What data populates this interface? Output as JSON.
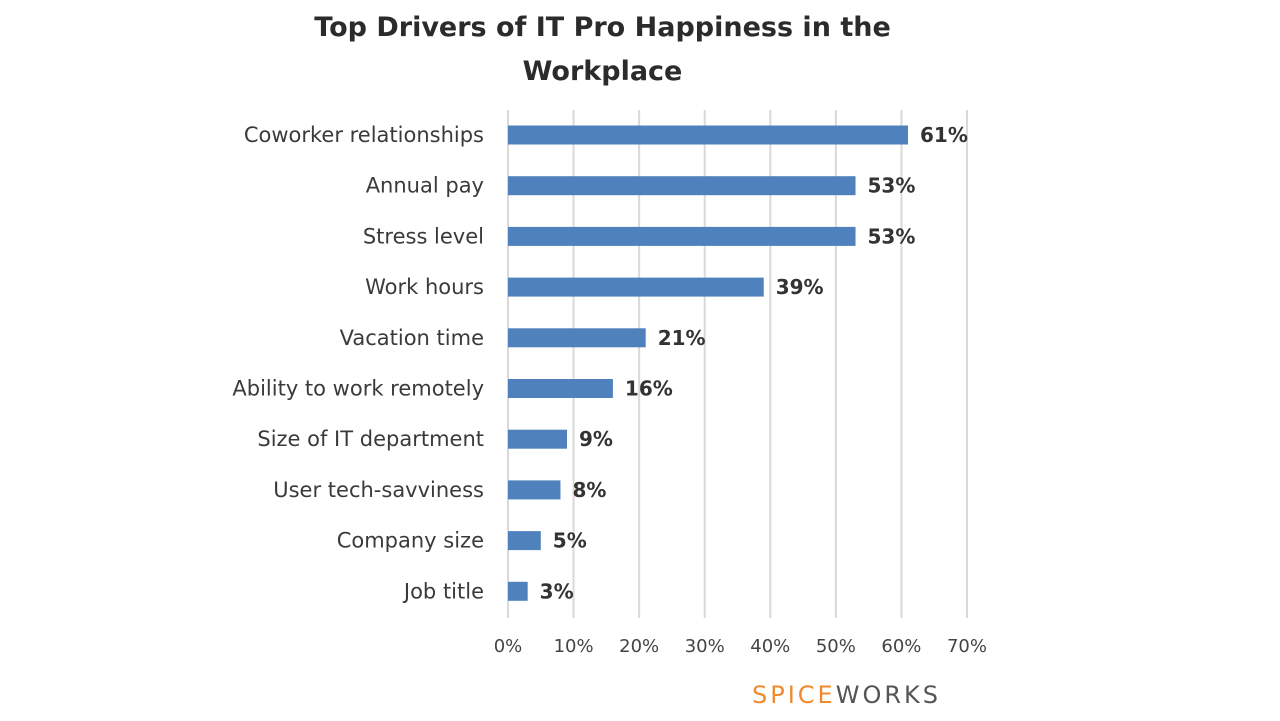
{
  "chart_data": {
    "type": "bar",
    "orientation": "horizontal",
    "title_lines": [
      "Top Drivers of IT Pro Happiness in the",
      "Workplace"
    ],
    "categories": [
      "Coworker relationships",
      "Annual pay",
      "Stress level",
      "Work hours",
      "Vacation time",
      "Ability to work remotely",
      "Size of IT department",
      "User tech-savviness",
      "Company size",
      "Job title"
    ],
    "values": [
      61,
      53,
      53,
      39,
      21,
      16,
      9,
      8,
      5,
      3
    ],
    "value_labels": [
      "61%",
      "53%",
      "53%",
      "39%",
      "21%",
      "16%",
      "9%",
      "8%",
      "5%",
      "3%"
    ],
    "xlim": [
      0,
      70
    ],
    "x_ticks": [
      0,
      10,
      20,
      30,
      40,
      50,
      60,
      70
    ],
    "x_tick_labels": [
      "0%",
      "10%",
      "20%",
      "30%",
      "40%",
      "50%",
      "60%",
      "70%"
    ],
    "grid": "vertical",
    "bar_color": "#4f81bd",
    "legend": "none"
  },
  "brand": {
    "part1": "SPICE",
    "part2": "WORKS"
  },
  "colors": {
    "brand_orange": "#f08a2c",
    "brand_gray": "#555555",
    "grid": "#d9d9d9"
  }
}
